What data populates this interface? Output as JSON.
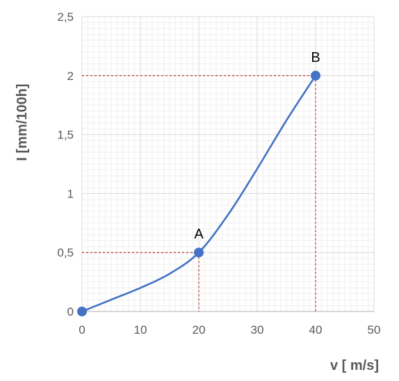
{
  "chart_data": {
    "type": "line",
    "xlabel": "v [ m/s]",
    "ylabel": "I [mm/100h]",
    "xlim": [
      0,
      50
    ],
    "ylim": [
      0,
      2.5
    ],
    "x_ticks": [
      "0",
      "10",
      "20",
      "30",
      "40",
      "50"
    ],
    "y_ticks": [
      "0",
      "0,5",
      "1",
      "1,5",
      "2",
      "2,5"
    ],
    "grid": true,
    "line_color": "#4472c4",
    "reference_line_color": "#c00000",
    "series": [
      {
        "x": [
          0,
          5,
          10,
          15,
          20,
          25,
          30,
          35,
          40
        ],
        "y": [
          0,
          0.1,
          0.2,
          0.32,
          0.5,
          0.82,
          1.21,
          1.62,
          2.0
        ]
      }
    ],
    "markers": [
      {
        "label": "",
        "x": 0,
        "y": 0
      },
      {
        "label": "A",
        "x": 20,
        "y": 0.5
      },
      {
        "label": "B",
        "x": 40,
        "y": 2.0
      }
    ]
  }
}
